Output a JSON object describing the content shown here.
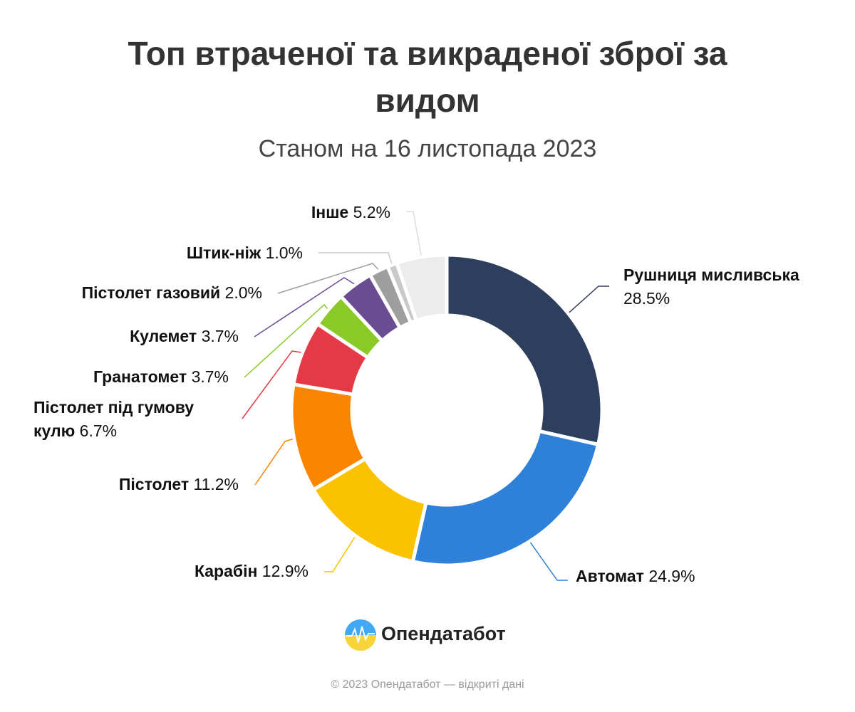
{
  "chart_data": {
    "type": "donut",
    "title": "Топ втраченої та викраденої зброї за видом",
    "subtitle": "Станом на 16 листопада 2023",
    "categories": [
      "Рушниця мисливська",
      "Автомат",
      "Карабін",
      "Пістолет",
      "Пістолет під гумову кулю",
      "Гранатомет",
      "Кулемет",
      "Пістолет газовий",
      "Штик-ніж",
      "Інше"
    ],
    "values": [
      28.5,
      24.9,
      12.9,
      11.2,
      6.7,
      3.7,
      3.7,
      2.0,
      1.0,
      5.2
    ],
    "value_labels": [
      "28.5%",
      "24.9%",
      "12.9%",
      "11.2%",
      "6.7%",
      "3.7%",
      "3.7%",
      "2.0%",
      "1.0%",
      "5.2%"
    ],
    "colors": [
      "#2e3f5e",
      "#2e80d9",
      "#fbc200",
      "#fb8500",
      "#e63946",
      "#8ac926",
      "#6a4c93",
      "#9e9e9e",
      "#c9c9c9",
      "#ececec"
    ]
  },
  "brand": "Опендатабот",
  "footer": "© 2023 Опендатабот — відкриті дані"
}
